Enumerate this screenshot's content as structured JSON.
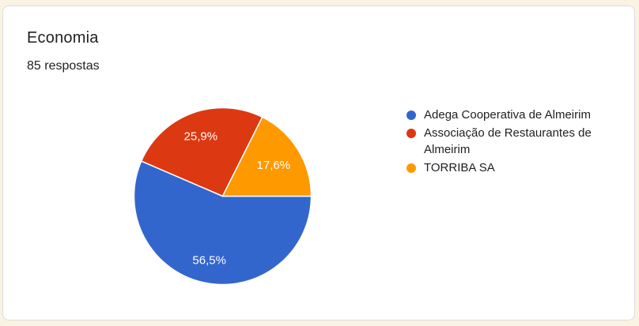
{
  "card": {
    "title": "Economia",
    "responses_label": "85 respostas"
  },
  "chart_data": {
    "type": "pie",
    "title": "Economia",
    "subtitle": "85 respostas",
    "legend_position": "right",
    "start_angle_deg": 0,
    "direction": "clockwise",
    "slices": [
      {
        "label": "Adega Cooperativa de Almeirim",
        "value": 56.5,
        "percent_label": "56,5%",
        "color": "#3366CC"
      },
      {
        "label": "Associação de Restaurantes de Almeirim",
        "value": 25.9,
        "percent_label": "25,9%",
        "color": "#DC3912"
      },
      {
        "label": "TORRIBA SA",
        "value": 17.6,
        "percent_label": "17,6%",
        "color": "#FF9900"
      }
    ]
  },
  "colors": {
    "page_background": "#FAF2E3",
    "card_background": "#FFFFFF",
    "card_border": "#DADCE0",
    "title_text": "#202124",
    "subtitle_text": "#202124",
    "legend_text": "#212121",
    "slice_label_text": "#FFFFFF"
  }
}
